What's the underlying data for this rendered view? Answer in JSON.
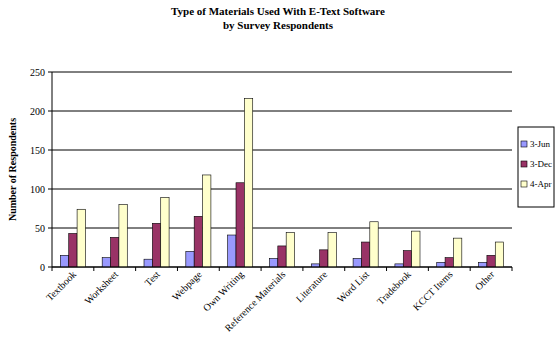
{
  "chart_data": {
    "type": "bar",
    "title": "Type of Materials Used With E-Text Software",
    "subtitle": "by Survey Respondents",
    "y_label": "Number of Respondents",
    "categories": [
      "Textbook",
      "Worksheet",
      "Test",
      "Webpage",
      "Own Writing",
      "Reference Materials",
      "Literature",
      "Word List",
      "Tradebook",
      "KCCT Items",
      "Other"
    ],
    "series": [
      {
        "name": "3-Jun",
        "color": "#9999ff",
        "values": [
          15,
          12,
          10,
          20,
          41,
          11,
          4,
          11,
          4,
          6,
          6
        ]
      },
      {
        "name": "3-Dec",
        "color": "#993366",
        "values": [
          43,
          38,
          56,
          65,
          108,
          27,
          22,
          32,
          21,
          12,
          15
        ]
      },
      {
        "name": "4-Apr",
        "color": "#ffffcc",
        "values": [
          74,
          80,
          89,
          118,
          216,
          44,
          44,
          58,
          46,
          37,
          32
        ]
      }
    ],
    "ylim": [
      0,
      250
    ],
    "yticks": [
      0,
      50,
      100,
      150,
      200,
      250
    ],
    "grid": true,
    "legend": "right"
  }
}
